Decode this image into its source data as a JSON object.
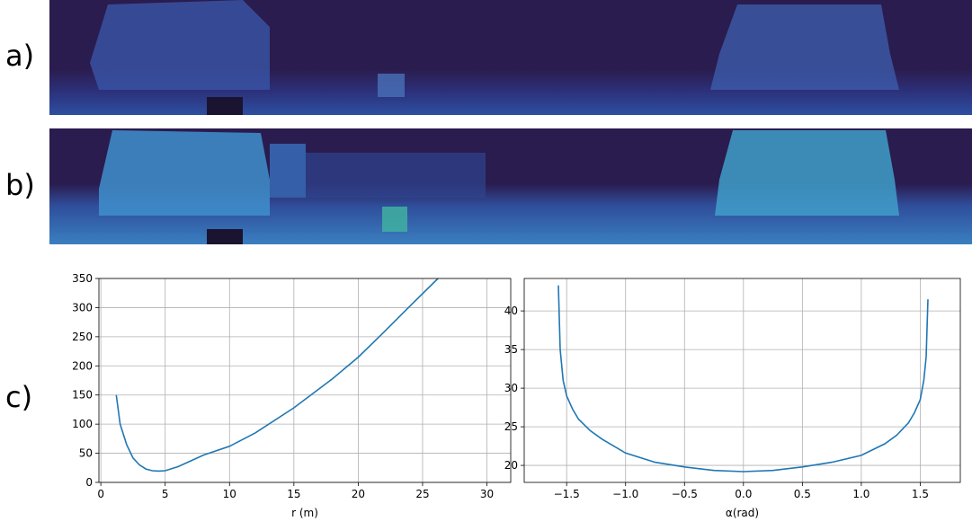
{
  "panel_labels": [
    "a)",
    "b)",
    "c)"
  ],
  "chart_data": [
    {
      "type": "line",
      "xlabel": "r (m)",
      "color": "#1f77b4",
      "grid": true,
      "x": [
        1.2,
        1.5,
        2,
        2.5,
        3,
        3.5,
        4,
        4.5,
        5,
        6,
        7,
        8,
        10,
        12,
        15,
        18,
        20,
        22,
        24,
        26.2
      ],
      "values": [
        150,
        100,
        65,
        42,
        30,
        23,
        20,
        19.5,
        20,
        27,
        37,
        47,
        62,
        85,
        128,
        178,
        215,
        258,
        302,
        350
      ],
      "xlim": [
        -0.15,
        31.85
      ],
      "ylim": [
        0,
        350
      ],
      "xticks": [
        0,
        5,
        10,
        15,
        20,
        25,
        30
      ],
      "yticks": [
        0,
        50,
        100,
        150,
        200,
        250,
        300,
        350
      ]
    },
    {
      "type": "line",
      "xlabel": "α(rad)",
      "color": "#1f77b4",
      "grid": true,
      "x": [
        -1.57,
        -1.555,
        -1.53,
        -1.5,
        -1.45,
        -1.4,
        -1.3,
        -1.2,
        -1.0,
        -0.75,
        -0.5,
        -0.25,
        0,
        0.25,
        0.5,
        0.75,
        1.0,
        1.2,
        1.3,
        1.4,
        1.45,
        1.5,
        1.53,
        1.55,
        1.565
      ],
      "values": [
        43.3,
        35,
        31,
        29,
        27.3,
        26,
        24.5,
        23.4,
        21.6,
        20.4,
        19.8,
        19.35,
        19.2,
        19.35,
        19.8,
        20.4,
        21.3,
        22.8,
        23.9,
        25.5,
        26.8,
        28.5,
        31,
        34,
        41.5
      ],
      "xlim": [
        -1.86,
        1.84
      ],
      "ylim": [
        17.8,
        44.2
      ],
      "xticks": [
        {
          "value": -1.5,
          "label": "−1.5"
        },
        {
          "value": -1.0,
          "label": "−1.0"
        },
        {
          "value": -0.5,
          "label": "−0.5"
        },
        {
          "value": 0,
          "label": "0.0"
        },
        0.5,
        {
          "value": 1.0,
          "label": "1.0"
        },
        1.5
      ],
      "yticks": [
        20,
        25,
        30,
        35,
        40
      ]
    }
  ]
}
